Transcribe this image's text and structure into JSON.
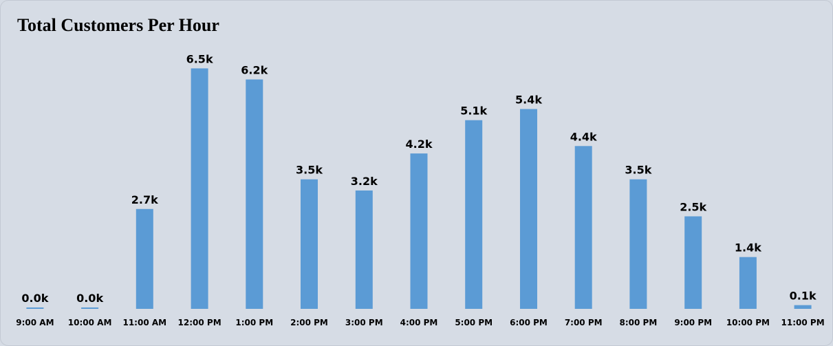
{
  "chart_data": {
    "type": "bar",
    "title": "Total Customers Per Hour",
    "xlabel": "",
    "ylabel": "",
    "categories": [
      "9:00 AM",
      "10:00 AM",
      "11:00 AM",
      "12:00 PM",
      "1:00 PM",
      "2:00 PM",
      "3:00 PM",
      "4:00 PM",
      "5:00 PM",
      "6:00 PM",
      "7:00 PM",
      "8:00 PM",
      "9:00 PM",
      "10:00 PM",
      "11:00 PM"
    ],
    "values": [
      10,
      30,
      2700,
      6500,
      6200,
      3500,
      3200,
      4200,
      5100,
      5400,
      4400,
      3500,
      2500,
      1400,
      100
    ],
    "data_labels": [
      "0.0k",
      "0.0k",
      "2.7k",
      "6.5k",
      "6.2k",
      "3.5k",
      "3.2k",
      "4.2k",
      "5.1k",
      "5.4k",
      "4.4k",
      "3.5k",
      "2.5k",
      "1.4k",
      "0.1k"
    ],
    "ylim": [
      0,
      6600
    ],
    "grid": false,
    "legend": "none",
    "colors": {
      "bar": "#5b9bd5",
      "background": "#d6dce5",
      "text": "#000000"
    }
  }
}
